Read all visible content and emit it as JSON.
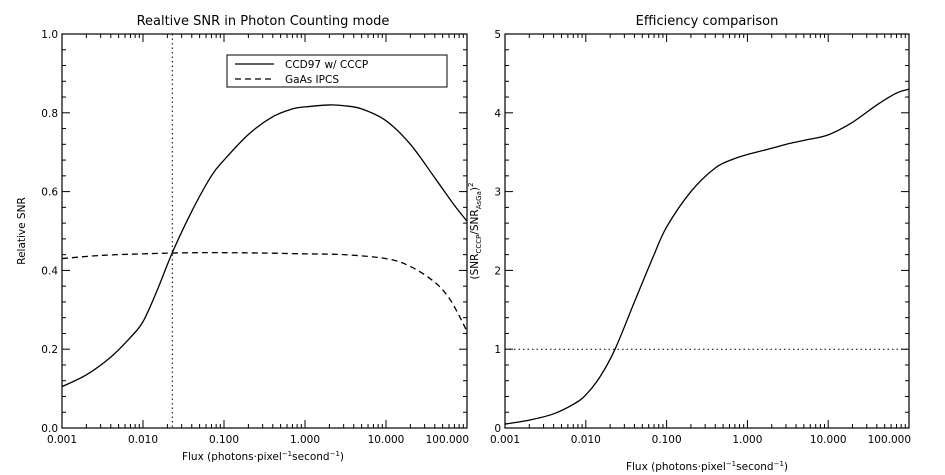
{
  "chart_data": [
    {
      "type": "line",
      "title": "Realtive SNR in Photon Counting mode",
      "xlabel": {
        "prefix": "Flux (photons·pixel",
        "sup1": "−1",
        "mid": "second",
        "sup2": "−1",
        "suffix": ")"
      },
      "ylabel": "Relative SNR",
      "xscale": "log",
      "xlim": [
        0.001,
        100
      ],
      "ylim": [
        0,
        1
      ],
      "xticks": [
        "0.001",
        "0.010",
        "0.100",
        "1.000",
        "10.000",
        "100.000"
      ],
      "yticks": [
        "0.0",
        "0.2",
        "0.4",
        "0.6",
        "0.8",
        "1.0"
      ],
      "vline": {
        "x": 0.023,
        "style": "dotted"
      },
      "legend": {
        "position": "top-right"
      },
      "series": [
        {
          "name": "CCD97 w/ CCCP",
          "style": "solid",
          "x": [
            0.001,
            0.002,
            0.004,
            0.007,
            0.01,
            0.015,
            0.023,
            0.04,
            0.07,
            0.1,
            0.2,
            0.4,
            0.7,
            1.0,
            2.0,
            3.0,
            5.0,
            10,
            20,
            40,
            70,
            100
          ],
          "y": [
            0.105,
            0.135,
            0.18,
            0.23,
            0.27,
            0.35,
            0.445,
            0.55,
            0.64,
            0.68,
            0.745,
            0.79,
            0.81,
            0.815,
            0.82,
            0.818,
            0.81,
            0.78,
            0.72,
            0.635,
            0.565,
            0.525
          ]
        },
        {
          "name": "GaAs IPCS",
          "style": "dashed",
          "x": [
            0.001,
            0.003,
            0.01,
            0.023,
            0.05,
            0.1,
            0.3,
            1.0,
            3.0,
            10,
            20,
            40,
            60,
            80,
            100
          ],
          "y": [
            0.43,
            0.438,
            0.442,
            0.444,
            0.445,
            0.445,
            0.444,
            0.442,
            0.44,
            0.43,
            0.41,
            0.37,
            0.33,
            0.285,
            0.245
          ]
        }
      ]
    },
    {
      "type": "line",
      "title": "Efficiency comparison",
      "xlabel": {
        "prefix": "Flux (photons·pixel",
        "sup1": "−1",
        "mid": "second",
        "sup2": "−1",
        "suffix": ")"
      },
      "ylabel": {
        "open": "(SNR",
        "sub1": "CCCP",
        "mid": "/SNR",
        "sub2": "AsGa",
        "close": ")",
        "sup": "2"
      },
      "xscale": "log",
      "xlim": [
        0.001,
        100
      ],
      "ylim": [
        0,
        5
      ],
      "xticks": [
        "0.001",
        "0.010",
        "0.100",
        "1.000",
        "10.000",
        "100.000"
      ],
      "yticks": [
        "0",
        "1",
        "2",
        "3",
        "4",
        "5"
      ],
      "hline": {
        "y": 1,
        "style": "dotted"
      },
      "series": [
        {
          "style": "solid",
          "x": [
            0.001,
            0.002,
            0.004,
            0.007,
            0.01,
            0.015,
            0.023,
            0.04,
            0.07,
            0.1,
            0.2,
            0.4,
            0.7,
            1.0,
            2.0,
            3.0,
            5.0,
            10,
            20,
            40,
            70,
            100
          ],
          "y": [
            0.05,
            0.1,
            0.18,
            0.3,
            0.42,
            0.65,
            1.0,
            1.6,
            2.2,
            2.55,
            3.0,
            3.3,
            3.42,
            3.47,
            3.55,
            3.6,
            3.65,
            3.72,
            3.88,
            4.1,
            4.25,
            4.3
          ]
        }
      ]
    }
  ]
}
